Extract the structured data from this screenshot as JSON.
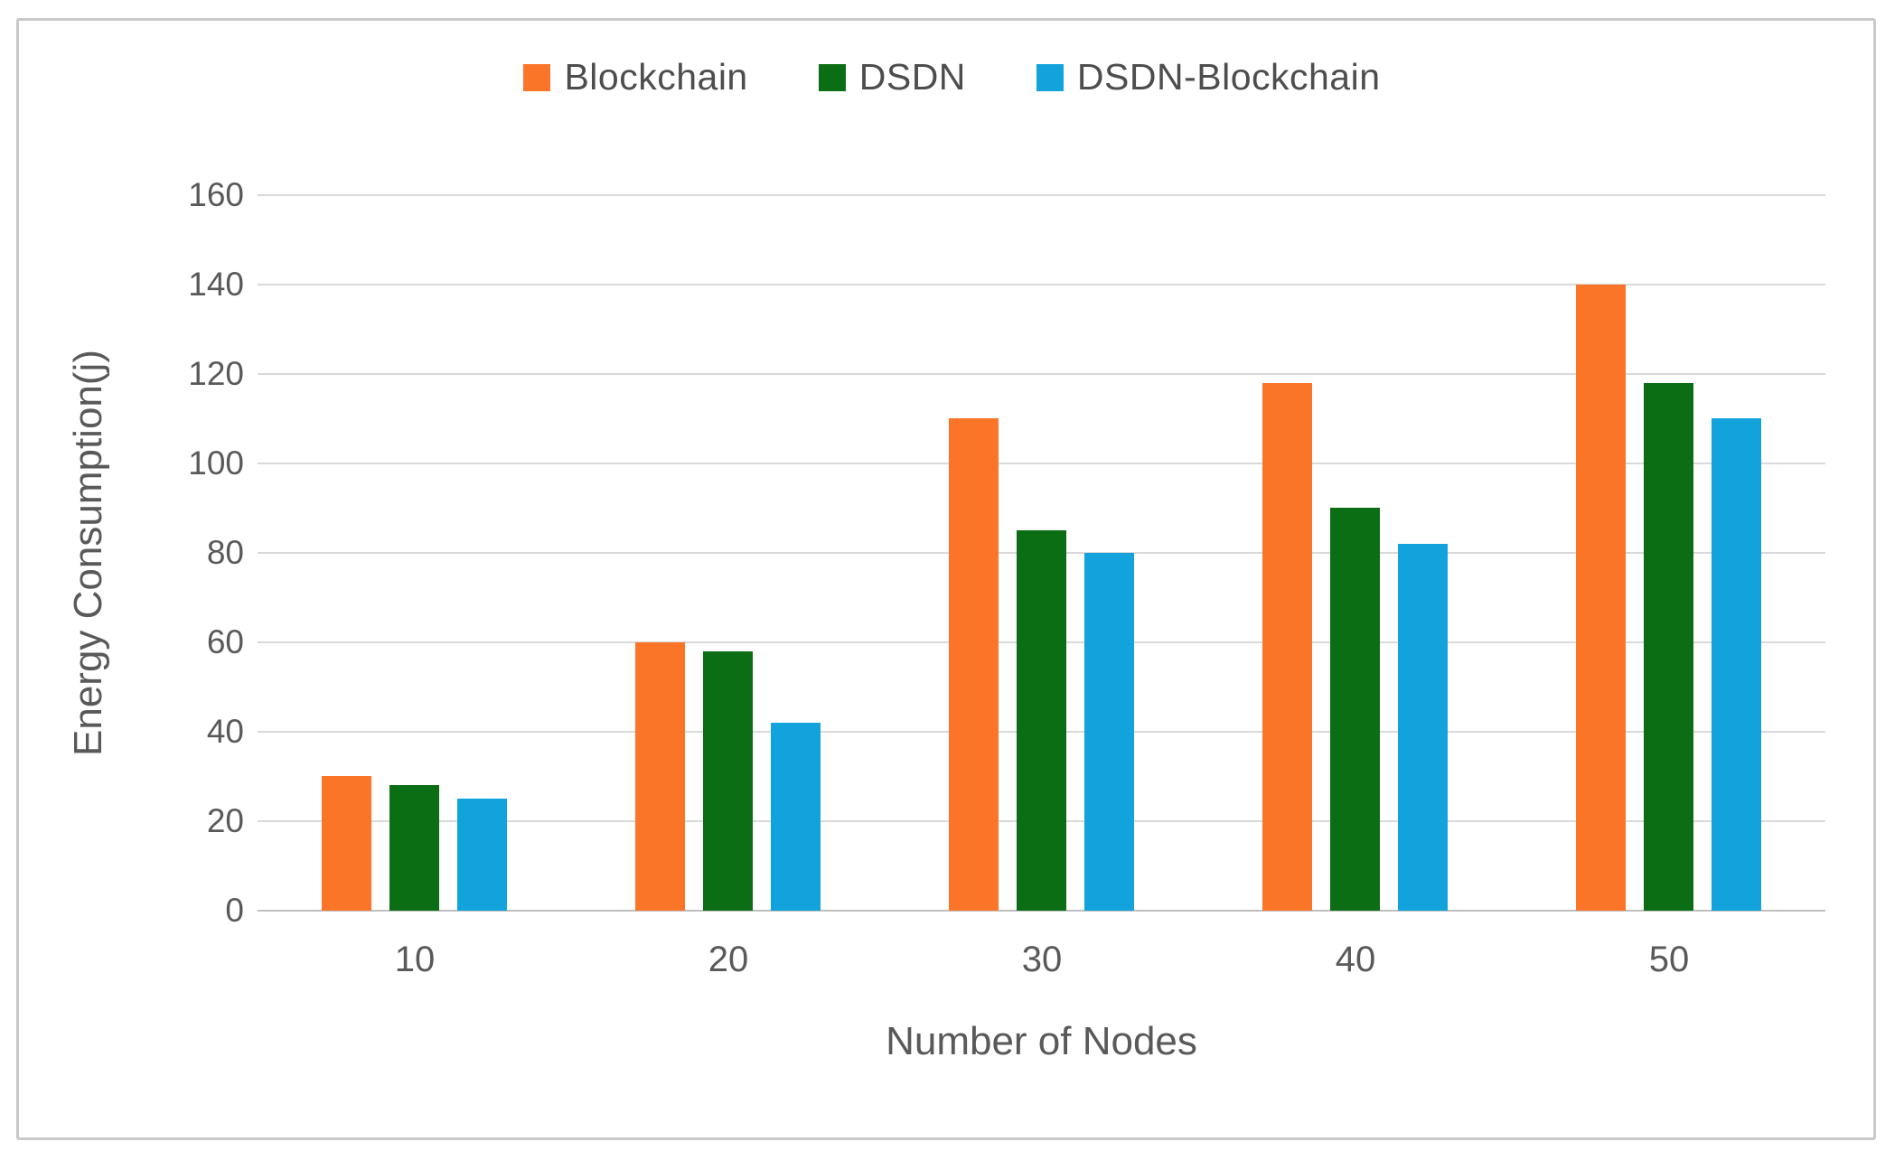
{
  "chart_data": {
    "type": "bar",
    "title": "",
    "xlabel": "Number of Nodes",
    "ylabel": "Energy Consumption(j)",
    "categories": [
      "10",
      "20",
      "30",
      "40",
      "50"
    ],
    "series": [
      {
        "name": "Blockchain",
        "color": "#FB7529",
        "values": [
          30,
          60,
          110,
          118,
          140
        ]
      },
      {
        "name": "DSDN",
        "color": "#0B6E14",
        "values": [
          28,
          58,
          85,
          90,
          118
        ]
      },
      {
        "name": "DSDN-Blockchain",
        "color": "#12A3DC",
        "values": [
          25,
          42,
          80,
          82,
          110
        ]
      }
    ],
    "ylim": [
      0,
      160
    ],
    "yticks": [
      0,
      20,
      40,
      60,
      80,
      100,
      120,
      140,
      160
    ],
    "grid": true,
    "legend_position": "top",
    "colors": {
      "gridline": "#d9d9d9",
      "axis_line": "#bfbfbf",
      "tick_text": "#595959",
      "legend_text": "#4d4d4d",
      "frame_border": "#c9c9c9"
    }
  }
}
